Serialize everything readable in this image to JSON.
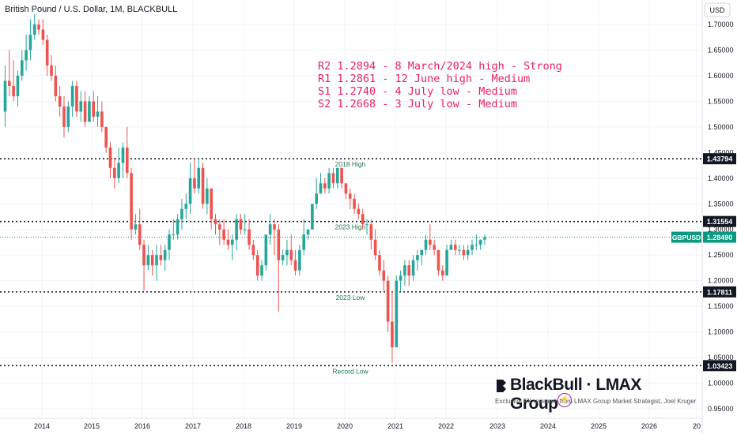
{
  "title": "British Pound / U.S. Dollar, 1M, BLACKBULL",
  "currency_label": "USD",
  "annotations": [
    "R2 1.2894 - 8 March/2024 high - Strong",
    "R1 1.2861 - 12 June high - Medium",
    "S1 1.2740 - 4 July low - Medium",
    "S2 1.2668 - 3 July low - Medium"
  ],
  "colors": {
    "up": "#26a69a",
    "down": "#ef5350",
    "annotation": "#e91e63",
    "level_label_bg": "#131722",
    "current_bg": "#089981"
  },
  "brand": {
    "name": "BlackBull · LMAX Group",
    "subtitle": "Exclusive FX research from LMAX Group Market Strategist, Joel Kruger",
    "logo_icon": "blackbull-logo-icon",
    "badge_icon": "lightning-icon"
  },
  "chart_data": {
    "type": "candlestick",
    "symbol": "GBPUSD",
    "timeframe": "1M",
    "ylim": [
      0.93,
      1.73
    ],
    "y_ticks": [
      1.7,
      1.65,
      1.6,
      1.55,
      1.5,
      1.45,
      1.4,
      1.35,
      1.3,
      1.25,
      1.2,
      1.15,
      1.1,
      1.05,
      1.0,
      0.95
    ],
    "y_tick_labels": [
      "1.70000",
      "1.65000",
      "1.60000",
      "1.55000",
      "1.50000",
      "1.45000",
      "1.40000",
      "1.35000",
      "1.30000",
      "1.25000",
      "1.20000",
      "1.15000",
      "1.10000",
      "1.05000",
      "1.00000",
      "0.95000"
    ],
    "x_ticks": [
      "2014",
      "2015",
      "2016",
      "2017",
      "2018",
      "2019",
      "2020",
      "2021",
      "2022",
      "2023",
      "2024",
      "2025",
      "2026",
      "20"
    ],
    "current_price": {
      "label": "GBPUSD",
      "value": "1.28490",
      "y": 1.2849
    },
    "levels": [
      {
        "value": 1.43794,
        "label": "1.43794",
        "text": "2018 High"
      },
      {
        "value": 1.31554,
        "label": "1.31554",
        "text": "2023 High"
      },
      {
        "value": 1.17811,
        "label": "1.17811",
        "text": "2023 Low"
      },
      {
        "value": 1.03423,
        "label": "1.03423",
        "text": "Record Low"
      }
    ],
    "candles": [
      [
        1.53,
        1.62,
        1.5,
        1.59
      ],
      [
        1.59,
        1.65,
        1.56,
        1.58
      ],
      [
        1.58,
        1.63,
        1.55,
        1.56
      ],
      [
        1.56,
        1.61,
        1.54,
        1.6
      ],
      [
        1.6,
        1.65,
        1.59,
        1.63
      ],
      [
        1.63,
        1.68,
        1.61,
        1.65
      ],
      [
        1.65,
        1.71,
        1.63,
        1.68
      ],
      [
        1.68,
        1.72,
        1.67,
        1.7
      ],
      [
        1.7,
        1.71,
        1.68,
        1.69
      ],
      [
        1.69,
        1.71,
        1.66,
        1.67
      ],
      [
        1.67,
        1.68,
        1.6,
        1.62
      ],
      [
        1.62,
        1.64,
        1.59,
        1.6
      ],
      [
        1.6,
        1.62,
        1.55,
        1.56
      ],
      [
        1.56,
        1.58,
        1.52,
        1.54
      ],
      [
        1.54,
        1.56,
        1.48,
        1.5
      ],
      [
        1.5,
        1.55,
        1.49,
        1.54
      ],
      [
        1.54,
        1.59,
        1.52,
        1.58
      ],
      [
        1.58,
        1.59,
        1.52,
        1.53
      ],
      [
        1.53,
        1.57,
        1.51,
        1.55
      ],
      [
        1.55,
        1.57,
        1.5,
        1.51
      ],
      [
        1.51,
        1.56,
        1.51,
        1.55
      ],
      [
        1.55,
        1.57,
        1.51,
        1.52
      ],
      [
        1.52,
        1.56,
        1.5,
        1.53
      ],
      [
        1.53,
        1.55,
        1.49,
        1.5
      ],
      [
        1.5,
        1.5,
        1.45,
        1.46
      ],
      [
        1.46,
        1.47,
        1.4,
        1.42
      ],
      [
        1.42,
        1.44,
        1.38,
        1.4
      ],
      [
        1.4,
        1.46,
        1.39,
        1.43
      ],
      [
        1.43,
        1.47,
        1.4,
        1.46
      ],
      [
        1.46,
        1.5,
        1.4,
        1.41
      ],
      [
        1.41,
        1.42,
        1.28,
        1.3
      ],
      [
        1.3,
        1.33,
        1.29,
        1.31
      ],
      [
        1.31,
        1.34,
        1.26,
        1.27
      ],
      [
        1.27,
        1.28,
        1.18,
        1.23
      ],
      [
        1.23,
        1.27,
        1.22,
        1.25
      ],
      [
        1.25,
        1.26,
        1.21,
        1.23
      ],
      [
        1.23,
        1.27,
        1.2,
        1.25
      ],
      [
        1.25,
        1.27,
        1.23,
        1.24
      ],
      [
        1.24,
        1.27,
        1.22,
        1.26
      ],
      [
        1.26,
        1.3,
        1.24,
        1.29
      ],
      [
        1.29,
        1.32,
        1.28,
        1.29
      ],
      [
        1.29,
        1.33,
        1.28,
        1.32
      ],
      [
        1.32,
        1.36,
        1.3,
        1.34
      ],
      [
        1.34,
        1.37,
        1.32,
        1.35
      ],
      [
        1.35,
        1.43,
        1.33,
        1.4
      ],
      [
        1.4,
        1.44,
        1.37,
        1.38
      ],
      [
        1.38,
        1.44,
        1.37,
        1.42
      ],
      [
        1.42,
        1.43,
        1.34,
        1.35
      ],
      [
        1.35,
        1.4,
        1.33,
        1.38
      ],
      [
        1.38,
        1.38,
        1.3,
        1.32
      ],
      [
        1.32,
        1.33,
        1.29,
        1.31
      ],
      [
        1.31,
        1.32,
        1.27,
        1.3
      ],
      [
        1.3,
        1.32,
        1.27,
        1.28
      ],
      [
        1.28,
        1.3,
        1.26,
        1.27
      ],
      [
        1.27,
        1.29,
        1.24,
        1.28
      ],
      [
        1.28,
        1.33,
        1.26,
        1.32
      ],
      [
        1.32,
        1.33,
        1.29,
        1.3
      ],
      [
        1.3,
        1.33,
        1.29,
        1.3
      ],
      [
        1.3,
        1.32,
        1.26,
        1.27
      ],
      [
        1.27,
        1.28,
        1.24,
        1.25
      ],
      [
        1.25,
        1.26,
        1.2,
        1.21
      ],
      [
        1.21,
        1.24,
        1.2,
        1.23
      ],
      [
        1.23,
        1.29,
        1.22,
        1.29
      ],
      [
        1.29,
        1.33,
        1.27,
        1.31
      ],
      [
        1.31,
        1.32,
        1.25,
        1.3
      ],
      [
        1.3,
        1.31,
        1.14,
        1.24
      ],
      [
        1.24,
        1.26,
        1.23,
        1.25
      ],
      [
        1.25,
        1.28,
        1.23,
        1.26
      ],
      [
        1.26,
        1.29,
        1.23,
        1.24
      ],
      [
        1.24,
        1.26,
        1.21,
        1.22
      ],
      [
        1.22,
        1.27,
        1.21,
        1.26
      ],
      [
        1.26,
        1.32,
        1.25,
        1.29
      ],
      [
        1.29,
        1.3,
        1.28,
        1.3
      ],
      [
        1.3,
        1.35,
        1.3,
        1.35
      ],
      [
        1.35,
        1.4,
        1.34,
        1.37
      ],
      [
        1.37,
        1.41,
        1.37,
        1.39
      ],
      [
        1.39,
        1.4,
        1.37,
        1.38
      ],
      [
        1.38,
        1.42,
        1.37,
        1.41
      ],
      [
        1.41,
        1.42,
        1.38,
        1.39
      ],
      [
        1.39,
        1.42,
        1.38,
        1.42
      ],
      [
        1.42,
        1.42,
        1.38,
        1.39
      ],
      [
        1.39,
        1.39,
        1.36,
        1.37
      ],
      [
        1.37,
        1.38,
        1.34,
        1.36
      ],
      [
        1.36,
        1.37,
        1.33,
        1.34
      ],
      [
        1.34,
        1.35,
        1.32,
        1.33
      ],
      [
        1.33,
        1.34,
        1.3,
        1.31
      ],
      [
        1.31,
        1.32,
        1.29,
        1.31
      ],
      [
        1.31,
        1.32,
        1.26,
        1.28
      ],
      [
        1.28,
        1.3,
        1.24,
        1.25
      ],
      [
        1.25,
        1.26,
        1.21,
        1.22
      ],
      [
        1.22,
        1.24,
        1.18,
        1.2
      ],
      [
        1.2,
        1.21,
        1.1,
        1.12
      ],
      [
        1.12,
        1.18,
        1.04,
        1.07
      ],
      [
        1.07,
        1.21,
        1.07,
        1.2
      ],
      [
        1.2,
        1.22,
        1.18,
        1.21
      ],
      [
        1.21,
        1.24,
        1.19,
        1.23
      ],
      [
        1.23,
        1.24,
        1.19,
        1.21
      ],
      [
        1.21,
        1.25,
        1.2,
        1.24
      ],
      [
        1.24,
        1.26,
        1.22,
        1.25
      ],
      [
        1.25,
        1.26,
        1.23,
        1.26
      ],
      [
        1.26,
        1.29,
        1.25,
        1.28
      ],
      [
        1.28,
        1.31,
        1.26,
        1.27
      ],
      [
        1.27,
        1.28,
        1.25,
        1.26
      ],
      [
        1.26,
        1.26,
        1.21,
        1.22
      ],
      [
        1.22,
        1.23,
        1.2,
        1.21
      ],
      [
        1.21,
        1.27,
        1.21,
        1.26
      ],
      [
        1.26,
        1.28,
        1.26,
        1.27
      ],
      [
        1.27,
        1.28,
        1.25,
        1.26
      ],
      [
        1.26,
        1.27,
        1.25,
        1.26
      ],
      [
        1.26,
        1.27,
        1.24,
        1.25
      ],
      [
        1.25,
        1.27,
        1.24,
        1.26
      ],
      [
        1.26,
        1.28,
        1.25,
        1.27
      ],
      [
        1.27,
        1.29,
        1.26,
        1.27
      ],
      [
        1.27,
        1.28,
        1.26,
        1.28
      ],
      [
        1.28,
        1.29,
        1.27,
        1.2849
      ]
    ]
  }
}
